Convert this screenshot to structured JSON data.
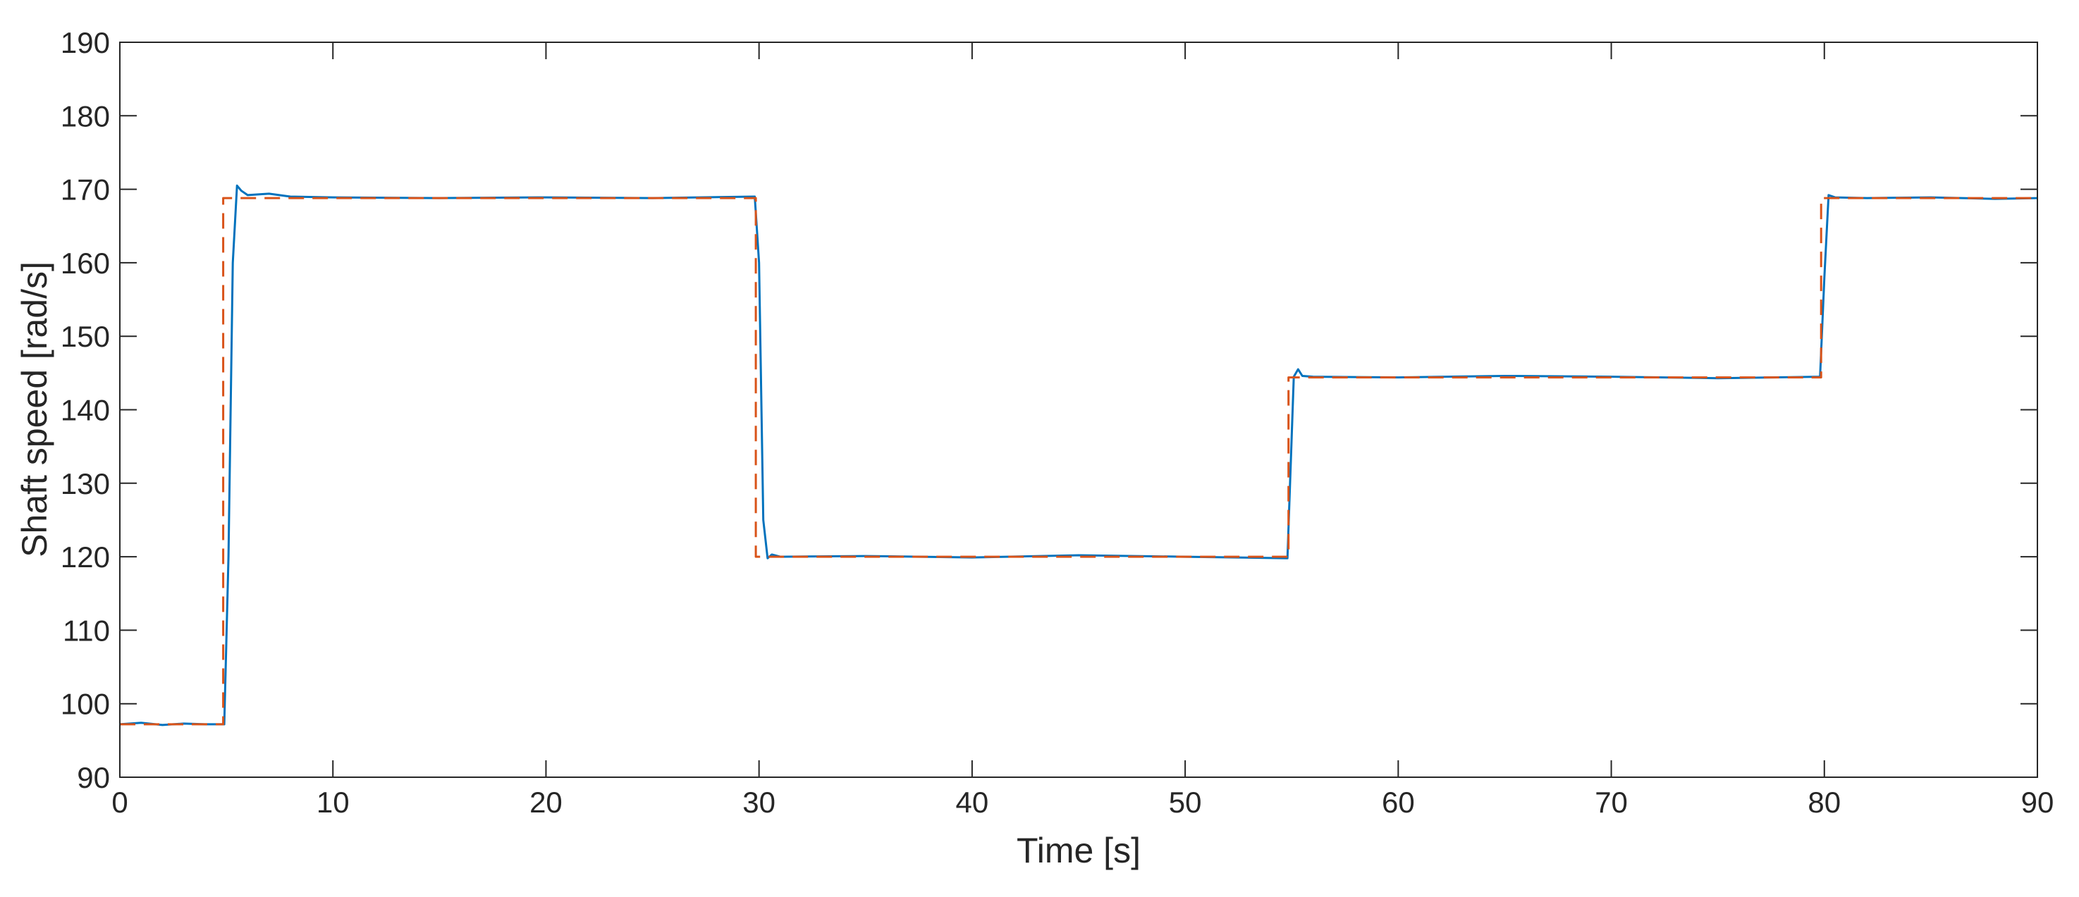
{
  "chart_data": {
    "type": "line",
    "title": "",
    "xlabel": "Time [s]",
    "ylabel": "Shaft speed [rad/s]",
    "xlim": [
      0,
      90
    ],
    "ylim": [
      90,
      190
    ],
    "xticks": [
      0,
      10,
      20,
      30,
      40,
      50,
      60,
      70,
      80,
      90
    ],
    "yticks": [
      90,
      100,
      110,
      120,
      130,
      140,
      150,
      160,
      170,
      180,
      190
    ],
    "grid": false,
    "legend": "none",
    "series": [
      {
        "style": "solid",
        "color": "#0072BD",
        "x": [
          0,
          1,
          2,
          3,
          4,
          4.9,
          5.1,
          5.3,
          5.5,
          5.7,
          6,
          7,
          8,
          10,
          15,
          20,
          25,
          29.8,
          30,
          30.2,
          30.4,
          30.6,
          31,
          35,
          40,
          45,
          50,
          54.8,
          55.1,
          55.3,
          55.5,
          56,
          60,
          65,
          70,
          75,
          79.8,
          80,
          80.2,
          80.5,
          82,
          85,
          88,
          90
        ],
        "values": [
          97.2,
          97.4,
          97.1,
          97.3,
          97.2,
          97.2,
          120,
          160,
          170.5,
          169.8,
          169.2,
          169.4,
          169.0,
          168.9,
          168.8,
          168.9,
          168.8,
          169.0,
          160,
          125,
          119.8,
          120.3,
          120.0,
          120.1,
          119.9,
          120.2,
          120.0,
          119.8,
          144.5,
          145.5,
          144.6,
          144.5,
          144.4,
          144.6,
          144.5,
          144.3,
          144.5,
          158,
          169.2,
          168.9,
          168.8,
          168.9,
          168.7,
          168.8
        ]
      },
      {
        "style": "dashed",
        "color": "#D95319",
        "x": [
          0,
          4.85,
          4.85,
          29.85,
          29.85,
          54.85,
          54.85,
          79.85,
          79.85,
          90
        ],
        "values": [
          97.2,
          97.2,
          168.8,
          168.8,
          120.0,
          120.0,
          144.4,
          144.4,
          168.8,
          168.8
        ]
      }
    ]
  }
}
